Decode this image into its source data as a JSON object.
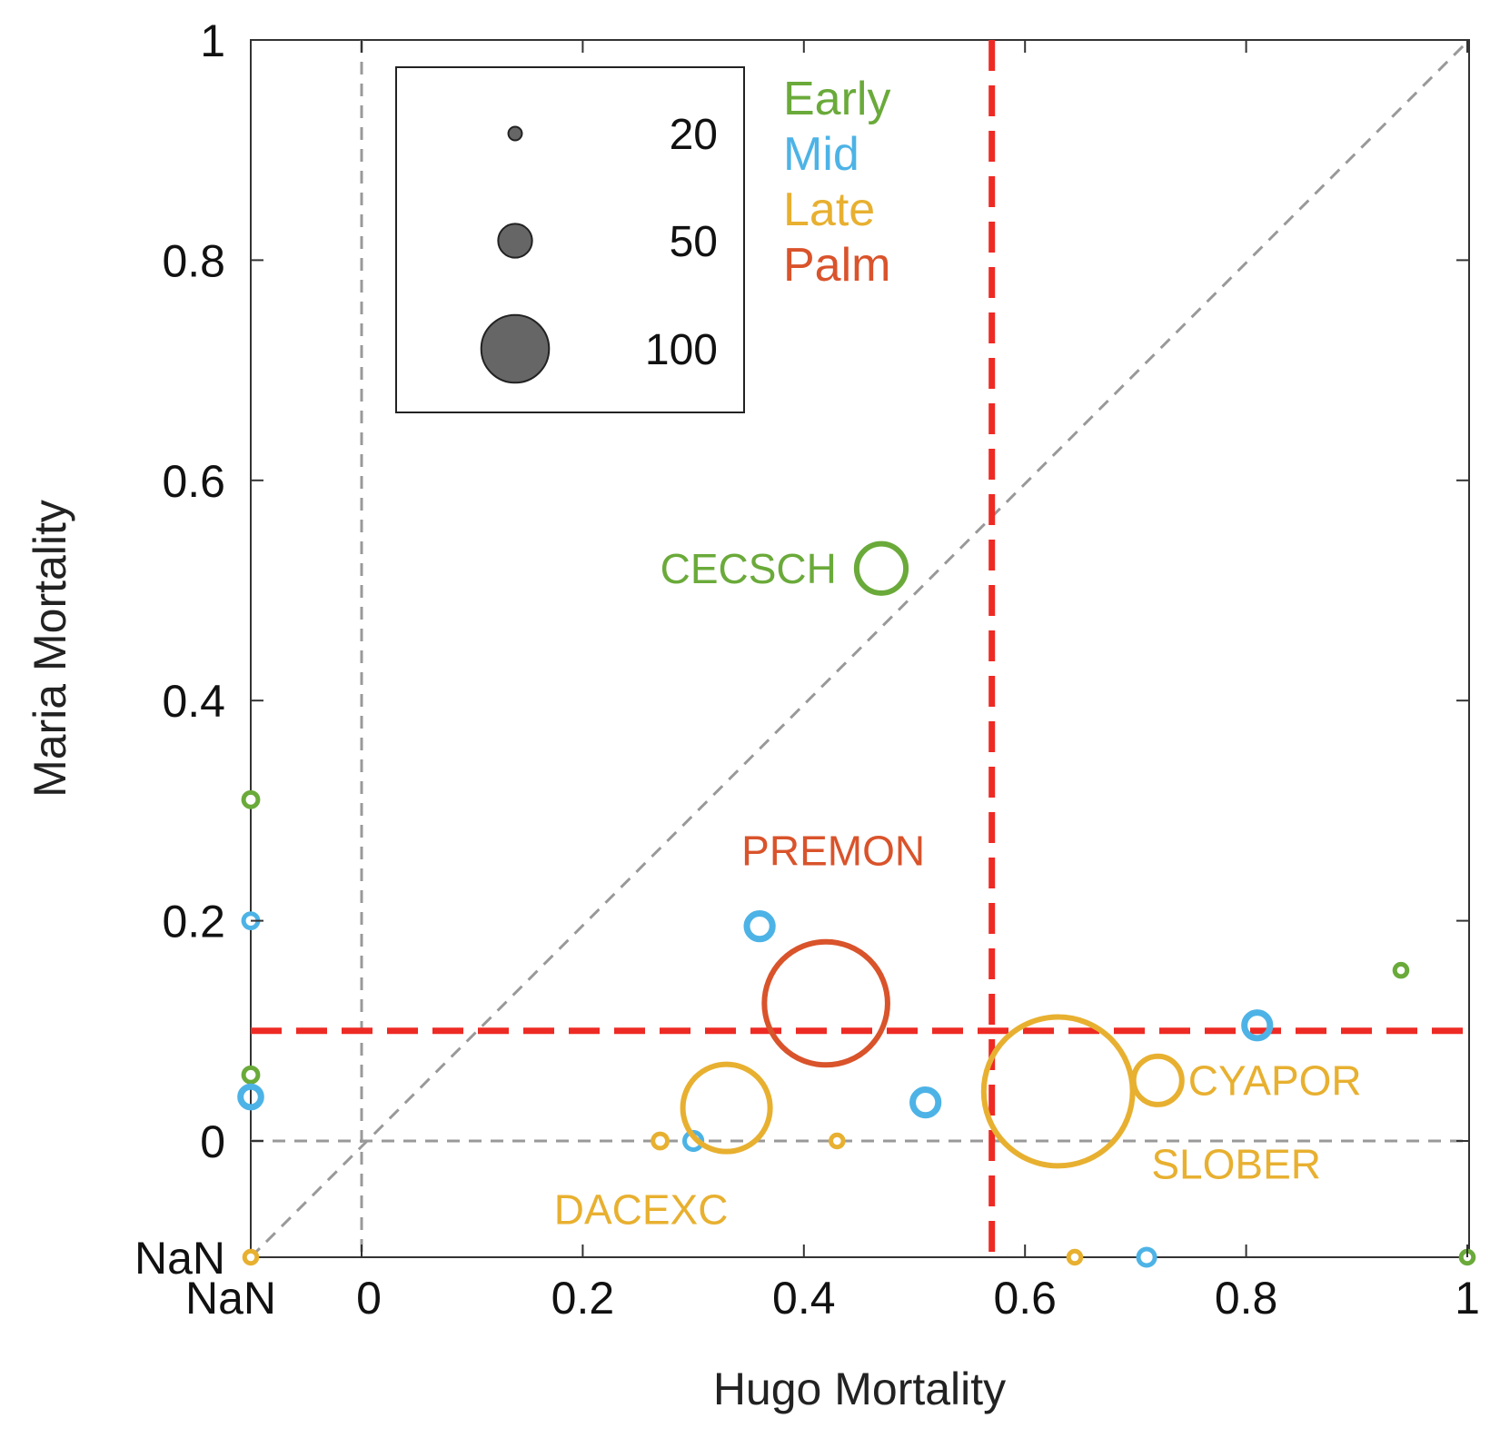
{
  "chart_data": {
    "type": "scatter",
    "xlabel": "Hugo Mortality",
    "ylabel": "Maria Mortality",
    "xlim": [
      0,
      1
    ],
    "ylim": [
      0,
      1
    ],
    "x_ticks": [
      {
        "value": "nan",
        "label": "NaN"
      },
      {
        "value": 0,
        "label": "0"
      },
      {
        "value": 0.2,
        "label": "0.2"
      },
      {
        "value": 0.4,
        "label": "0.4"
      },
      {
        "value": 0.6,
        "label": "0.6"
      },
      {
        "value": 0.8,
        "label": "0.8"
      },
      {
        "value": 1,
        "label": "1"
      }
    ],
    "y_ticks": [
      {
        "value": "nan",
        "label": "NaN"
      },
      {
        "value": 0,
        "label": "0"
      },
      {
        "value": 0.2,
        "label": "0.2"
      },
      {
        "value": 0.4,
        "label": "0.4"
      },
      {
        "value": 0.6,
        "label": "0.6"
      },
      {
        "value": 0.8,
        "label": "0.8"
      },
      {
        "value": 1,
        "label": "1"
      }
    ],
    "size_legend": [
      {
        "size": 20,
        "label": "20"
      },
      {
        "size": 50,
        "label": "50"
      },
      {
        "size": 100,
        "label": "100"
      }
    ],
    "categories": [
      {
        "name": "Early",
        "color": "#6aaa3a"
      },
      {
        "name": "Mid",
        "color": "#4db3e6"
      },
      {
        "name": "Late",
        "color": "#e8b030"
      },
      {
        "name": "Palm",
        "color": "#d9532b"
      }
    ],
    "reference_lines": {
      "hugo_threshold": 0.57,
      "maria_threshold": 0.1,
      "threshold_color": "#ee2a24",
      "diagonal": true
    },
    "points": [
      {
        "x": 0.47,
        "y": 0.52,
        "size": 48,
        "category": "Early",
        "label": "CECSCH"
      },
      {
        "x": "nan",
        "y": 0.31,
        "size": 14,
        "category": "Early"
      },
      {
        "x": "nan",
        "y": 0.06,
        "size": 14,
        "category": "Early"
      },
      {
        "x": 0.94,
        "y": 0.155,
        "size": 12,
        "category": "Early"
      },
      {
        "x": 1.0,
        "y": "nan",
        "size": 12,
        "category": "Early"
      },
      {
        "x": "nan",
        "y": 0.2,
        "size": 14,
        "category": "Mid"
      },
      {
        "x": "nan",
        "y": 0.04,
        "size": 20,
        "category": "Mid"
      },
      {
        "x": 0.36,
        "y": 0.195,
        "size": 25,
        "category": "Mid"
      },
      {
        "x": 0.51,
        "y": 0.035,
        "size": 25,
        "category": "Mid"
      },
      {
        "x": 0.3,
        "y": 0.0,
        "size": 17,
        "category": "Mid"
      },
      {
        "x": 0.81,
        "y": 0.105,
        "size": 25,
        "category": "Mid"
      },
      {
        "x": 0.71,
        "y": "nan",
        "size": 16,
        "category": "Mid"
      },
      {
        "x": 0.33,
        "y": 0.03,
        "size": 85,
        "category": "Late",
        "label": "DACEXC"
      },
      {
        "x": 0.63,
        "y": 0.045,
        "size": 145,
        "category": "Late",
        "label": "SLOBER"
      },
      {
        "x": 0.72,
        "y": 0.055,
        "size": 47,
        "category": "Late",
        "label": "CYAPOR"
      },
      {
        "x": 0.27,
        "y": 0.0,
        "size": 14,
        "category": "Late"
      },
      {
        "x": 0.43,
        "y": 0.0,
        "size": 12,
        "category": "Late"
      },
      {
        "x": "nan",
        "y": "nan",
        "size": 12,
        "category": "Late"
      },
      {
        "x": 0.645,
        "y": "nan",
        "size": 12,
        "category": "Late"
      },
      {
        "x": 0.42,
        "y": 0.125,
        "size": 120,
        "category": "Palm",
        "label": "PREMON"
      }
    ]
  }
}
